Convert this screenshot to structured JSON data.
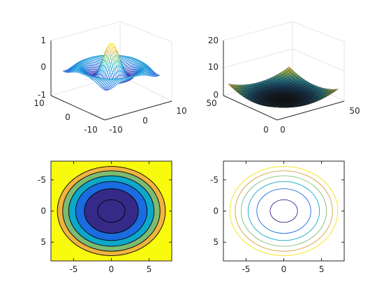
{
  "chart_data": [
    {
      "type": "surface",
      "mesh": true,
      "function": "sin(r)/r",
      "x_range": [
        -8,
        8
      ],
      "y_range": [
        -8,
        8
      ],
      "zlim": [
        -1,
        1
      ],
      "x_ticks": [
        "-10",
        "0",
        "10"
      ],
      "y_ticks": [
        "-10",
        "0",
        "10"
      ],
      "z_ticks": [
        "-1",
        "0",
        "1"
      ],
      "colormap": [
        "#3e26a8",
        "#1a7ee6",
        "#12b1c9",
        "#6fc172",
        "#f0b744",
        "#f9fb14"
      ],
      "grid": true
    },
    {
      "type": "surface",
      "mesh": false,
      "function": "0.0004 * ((x-25)^2 + (y-25)^2) * 10",
      "x_range": [
        0,
        50
      ],
      "y_range": [
        0,
        50
      ],
      "zlim": [
        0,
        20
      ],
      "x_ticks": [
        "0",
        "50"
      ],
      "y_ticks": [
        "0",
        "50"
      ],
      "z_ticks": [
        "0",
        "10",
        "20"
      ],
      "colormap": [
        "#0d0d0d",
        "#153a58",
        "#2a7e8e",
        "#8fae54",
        "#e3b236"
      ],
      "grid": true
    },
    {
      "type": "contourf",
      "function": "x^2 + y^2",
      "xlim": [
        -8,
        8
      ],
      "ylim": [
        -8,
        8
      ],
      "levels": [
        3.3,
        12.8,
        22.4,
        32,
        41.6,
        51.2
      ],
      "level_colors": [
        "#352a87",
        "#1a6de0",
        "#0ca7c9",
        "#7dbb74",
        "#f0b43f",
        "#f9fb0e"
      ],
      "x_ticks": [
        "-5",
        "0",
        "5"
      ],
      "y_ticks": [
        "-5",
        "0",
        "5"
      ],
      "x_tick_values": [
        -5,
        0,
        5
      ],
      "y_tick_values": [
        5,
        0,
        -5
      ]
    },
    {
      "type": "contour",
      "function": "x^2 + y^2",
      "xlim": [
        -8,
        8
      ],
      "ylim": [
        -8,
        8
      ],
      "levels": [
        3.3,
        12.8,
        22.4,
        32,
        41.6,
        51.2
      ],
      "level_colors": [
        "#352a87",
        "#1a6de0",
        "#0ca7c9",
        "#7dbb74",
        "#d4a043",
        "#f4e40e"
      ],
      "x_ticks": [
        "-5",
        "0",
        "5"
      ],
      "y_ticks": [
        "-5",
        "0",
        "5"
      ],
      "x_tick_values": [
        -5,
        0,
        5
      ],
      "y_tick_values": [
        5,
        0,
        -5
      ]
    }
  ]
}
